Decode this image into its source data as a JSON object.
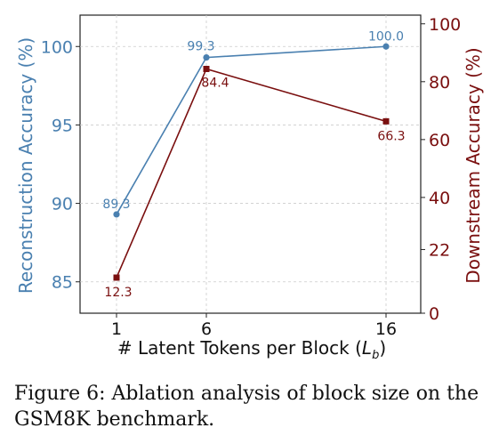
{
  "chart_data": {
    "type": "line",
    "x_categories": [
      "1",
      "6",
      "16"
    ],
    "xlabel_prefix": "# Latent Tokens per Block (",
    "xlabel_var": "L",
    "xlabel_sub": "b",
    "xlabel_suffix": ")",
    "left_axis": {
      "label": "Reconstruction Accuracy (%)",
      "ylim": [
        83,
        102
      ],
      "ticks": [
        85,
        90,
        95,
        100
      ],
      "color": "#4a80b0"
    },
    "right_axis": {
      "label": "Downstream Accuracy (%)",
      "ylim": [
        0,
        103
      ],
      "ticks": [
        0,
        22,
        40,
        60,
        80,
        100
      ],
      "color": "#7a0f0f"
    },
    "grid": true,
    "series": [
      {
        "axis": "left",
        "color": "#4a80b0",
        "marker": "circle",
        "values": [
          89.3,
          99.3,
          100.0
        ],
        "labels": [
          "89.3",
          "99.3",
          "100.0"
        ]
      },
      {
        "axis": "right",
        "color": "#7a0f0f",
        "marker": "square",
        "values": [
          12.3,
          84.4,
          66.3
        ],
        "labels": [
          "12.3",
          "84.4",
          "66.3"
        ]
      }
    ]
  },
  "caption": "Figure 6: Ablation analysis of block size on the GSM8K benchmark."
}
